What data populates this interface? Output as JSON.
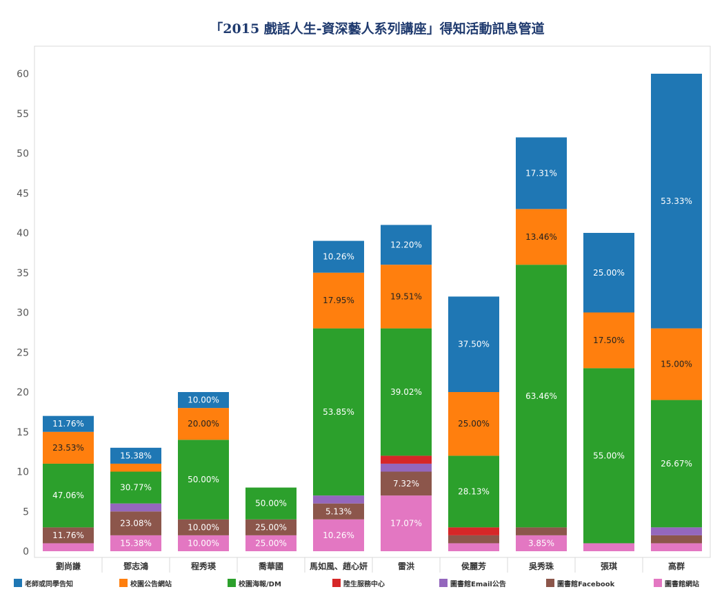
{
  "chart_data": {
    "type": "bar",
    "stacked": true,
    "title": "「2015 戲話人生-資深藝人系列講座」得知活動訊息管道",
    "xlabel": "",
    "ylabel": "",
    "ylim": [
      0,
      60
    ],
    "yticks": [
      0,
      5,
      10,
      15,
      20,
      25,
      30,
      35,
      40,
      45,
      50,
      55,
      60
    ],
    "grid": false,
    "legend_position": "bottom",
    "categories": [
      "劉尚謙",
      "鄧志鴻",
      "程秀瑛",
      "喬華國",
      "馬如風、趙心妍",
      "雷洪",
      "侯麗芳",
      "吳秀珠",
      "張琪",
      "高群"
    ],
    "series": [
      {
        "name": "圖書館網站",
        "color": "#e377c2",
        "values": [
          1,
          2,
          2,
          2,
          4,
          7,
          1,
          2,
          1,
          1
        ],
        "labels": [
          "",
          "15.38%",
          "10.00%",
          "25.00%",
          "10.26%",
          "17.07%",
          "",
          "3.85%",
          "",
          ""
        ]
      },
      {
        "name": "圖書館Facebook",
        "color": "#8c564b",
        "values": [
          2,
          3,
          2,
          2,
          2,
          3,
          1,
          1,
          0,
          1
        ],
        "labels": [
          "11.76%",
          "23.08%",
          "10.00%",
          "25.00%",
          "5.13%",
          "7.32%",
          "",
          "",
          "",
          ""
        ]
      },
      {
        "name": "圖書館Email公告",
        "color": "#9467bd",
        "values": [
          0,
          1,
          0,
          0,
          1,
          1,
          0,
          0,
          0,
          1
        ],
        "labels": [
          "",
          "",
          "",
          "",
          "",
          "",
          "",
          "",
          "",
          ""
        ]
      },
      {
        "name": "陸生服務中心",
        "color": "#d62728",
        "values": [
          0,
          0,
          0,
          0,
          0,
          1,
          1,
          0,
          0,
          0
        ],
        "labels": [
          "",
          "",
          "",
          "",
          "",
          "",
          "",
          "",
          "",
          ""
        ]
      },
      {
        "name": "校園海報/DM",
        "color": "#2ca02c",
        "values": [
          8,
          4,
          10,
          4,
          21,
          16,
          9,
          33,
          22,
          16
        ],
        "labels": [
          "47.06%",
          "30.77%",
          "50.00%",
          "50.00%",
          "53.85%",
          "39.02%",
          "28.13%",
          "63.46%",
          "55.00%",
          "26.67%"
        ]
      },
      {
        "name": "校園公告網站",
        "color": "#ff7f0e",
        "values": [
          4,
          1,
          4,
          0,
          7,
          8,
          8,
          7,
          7,
          9
        ],
        "labels": [
          "23.53%",
          "",
          "20.00%",
          "",
          "17.95%",
          "19.51%",
          "25.00%",
          "13.46%",
          "17.50%",
          "15.00%"
        ]
      },
      {
        "name": "老師或同學告知",
        "color": "#1f77b4",
        "values": [
          2,
          2,
          2,
          0,
          4,
          5,
          12,
          9,
          10,
          32
        ],
        "labels": [
          "11.76%",
          "15.38%",
          "10.00%",
          "",
          "10.26%",
          "12.20%",
          "37.50%",
          "17.31%",
          "25.00%",
          "53.33%"
        ]
      }
    ],
    "legend_order": [
      "老師或同學告知",
      "校園公告網站",
      "校園海報/DM",
      "陸生服務中心",
      "圖書館Email公告",
      "圖書館Facebook",
      "圖書館網站"
    ]
  }
}
